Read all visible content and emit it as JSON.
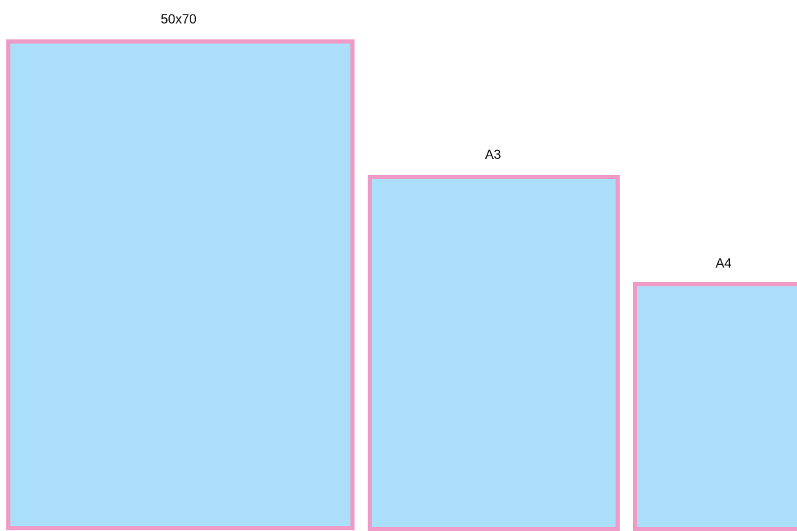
{
  "sheets": [
    {
      "label": "50x70"
    },
    {
      "label": "A3"
    },
    {
      "label": "A4"
    }
  ],
  "colors": {
    "fill": "#abdff9",
    "border": "#ee9cc7",
    "background": "#ffffff"
  }
}
